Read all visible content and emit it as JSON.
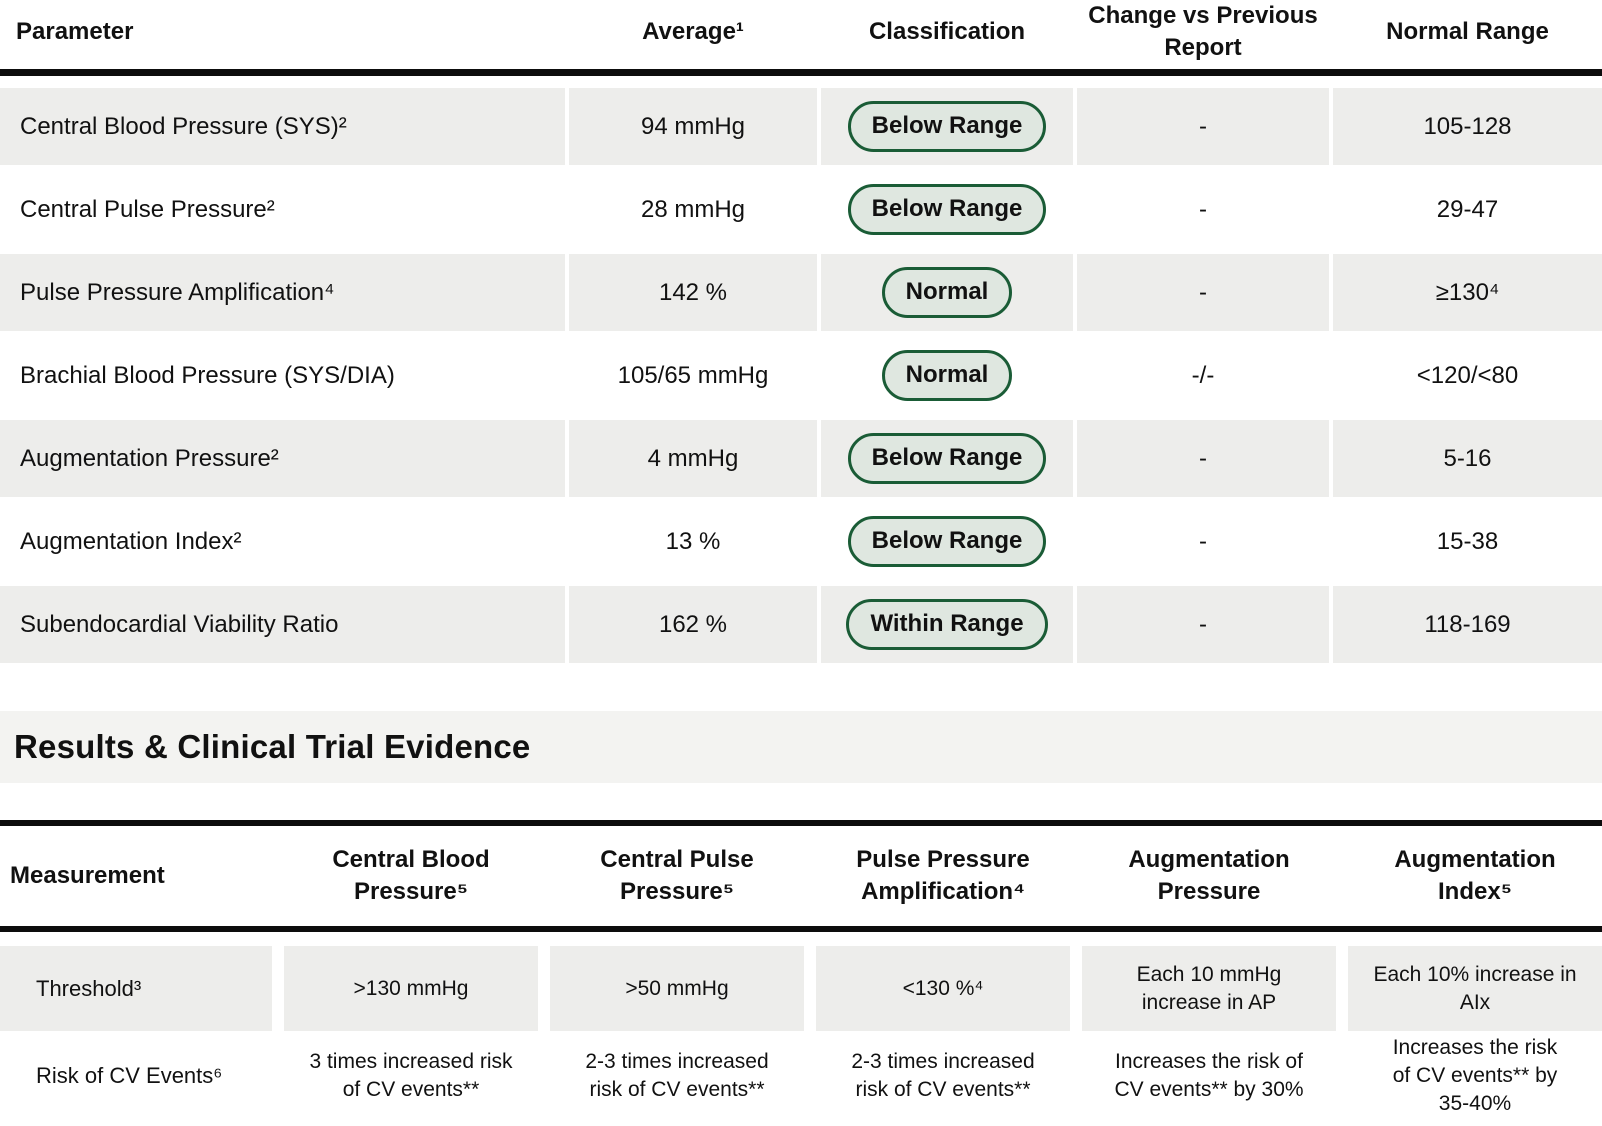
{
  "colors": {
    "row_background": "#ededeb",
    "section_band_background": "#f3f3f1",
    "badge_fill": "#dfe7e0",
    "badge_border": "#1a5c36",
    "rule": "#0d0d0d",
    "text": "#111111"
  },
  "results_table": {
    "headers": {
      "parameter": "Parameter",
      "average": "Average¹",
      "classification": "Classification",
      "change": "Change vs Previous Report",
      "range": "Normal Range"
    },
    "rows": [
      {
        "parameter": "Central Blood Pressure (SYS)²",
        "average": "94 mmHg",
        "classification": "Below Range",
        "change": "-",
        "range": "105-128"
      },
      {
        "parameter": "Central Pulse Pressure²",
        "average": "28 mmHg",
        "classification": "Below Range",
        "change": "-",
        "range": "29-47"
      },
      {
        "parameter": "Pulse Pressure Amplification⁴",
        "average": "142 %",
        "classification": "Normal",
        "change": "-",
        "range": "≥130⁴"
      },
      {
        "parameter": "Brachial Blood Pressure (SYS/DIA)",
        "average": "105/65 mmHg",
        "classification": "Normal",
        "change": "-/-",
        "range": "<120/<80"
      },
      {
        "parameter": "Augmentation Pressure²",
        "average": "4 mmHg",
        "classification": "Below Range",
        "change": "-",
        "range": "5-16"
      },
      {
        "parameter": "Augmentation Index²",
        "average": "13 %",
        "classification": "Below Range",
        "change": "-",
        "range": "15-38"
      },
      {
        "parameter": "Subendocardial Viability Ratio",
        "average": "162 %",
        "classification": "Within Range",
        "change": "-",
        "range": "118-169"
      }
    ]
  },
  "section_title": "Results & Clinical Trial Evidence",
  "evidence_table": {
    "headers": {
      "measurement": "Measurement",
      "cbp": "Central Blood Pressure⁵",
      "cpp": "Central Pulse Pressure⁵",
      "ppa": "Pulse Pressure Amplification⁴",
      "ap": "Augmentation Pressure",
      "aix": "Augmentation Index⁵"
    },
    "threshold_row": {
      "label": "Threshold³",
      "cbp": ">130 mmHg",
      "cpp": ">50 mmHg",
      "ppa": "<130 %⁴",
      "ap": "Each 10 mmHg increase in AP",
      "aix": "Each 10% increase in AIx"
    },
    "risk_row": {
      "label": "Risk of CV Events⁶",
      "cbp": "3 times increased risk of CV events**",
      "cpp": "2-3 times increased risk of CV events**",
      "ppa": "2-3 times increased risk of CV events**",
      "ap": "Increases the risk of CV events** by 30%",
      "aix": "Increases the risk of CV events** by 35-40%"
    }
  }
}
